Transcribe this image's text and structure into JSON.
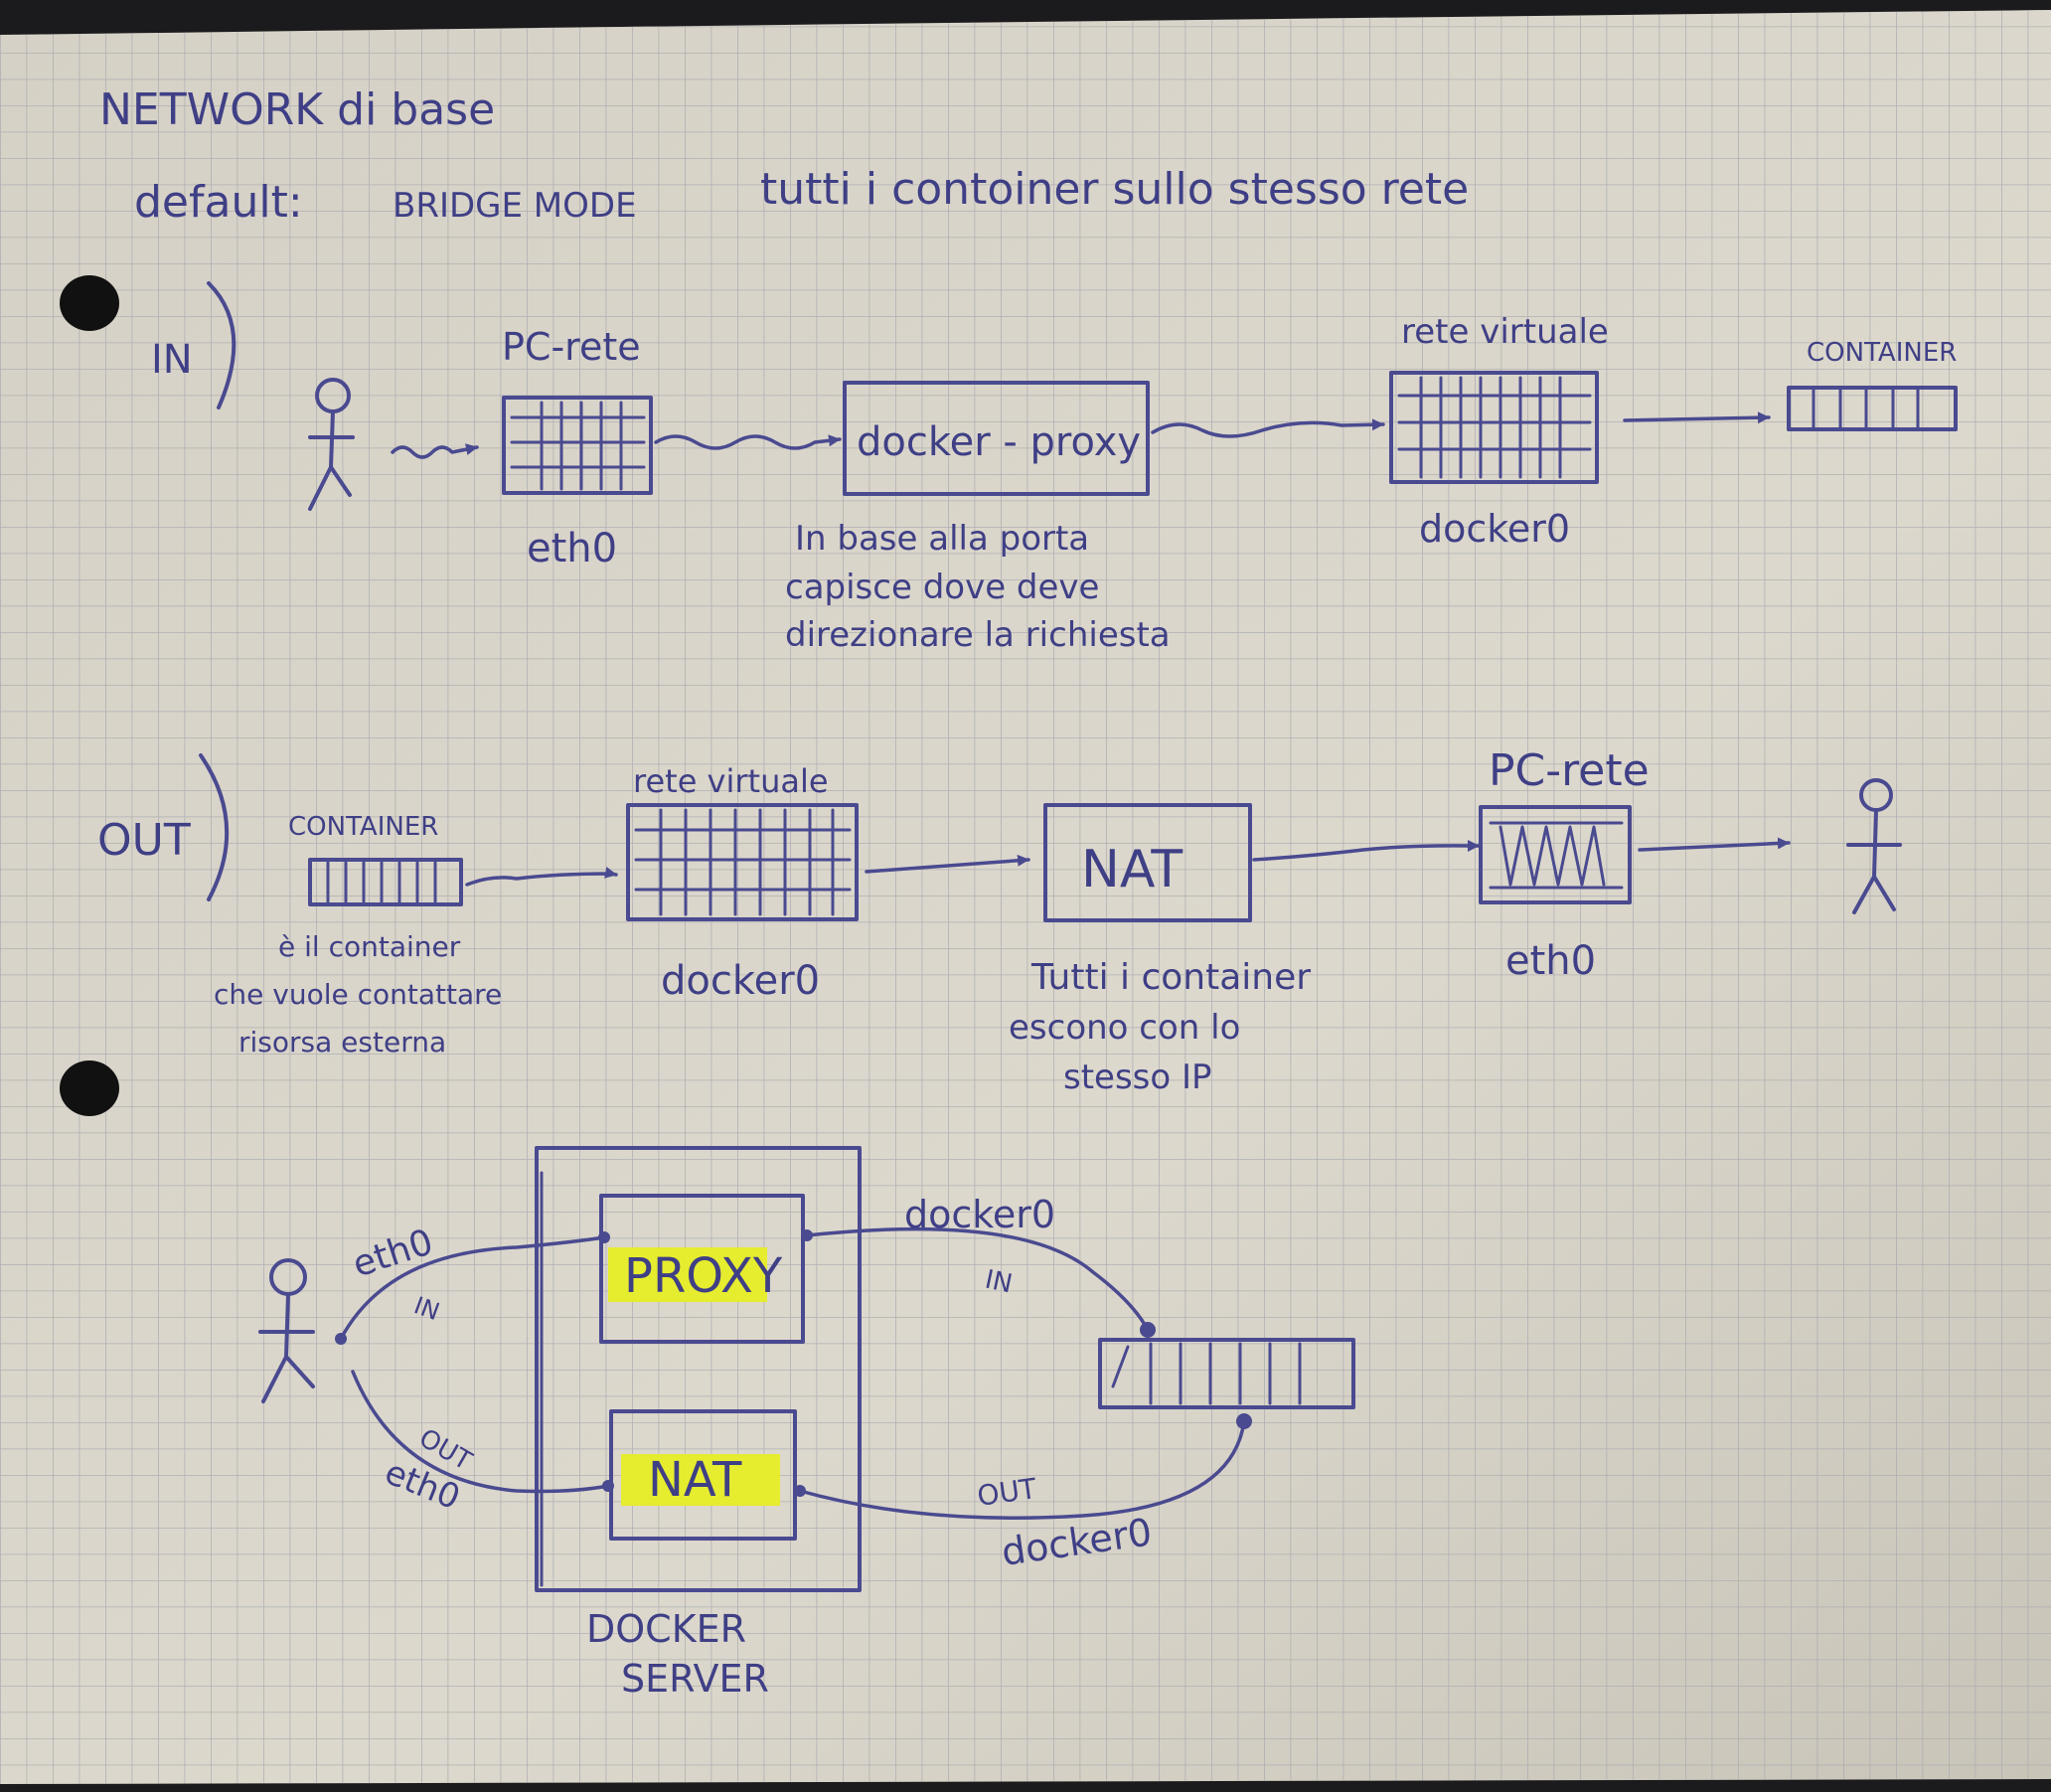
{
  "title": "NETWORK di base",
  "subtitle": {
    "prefix": "default:",
    "mode": "BRIDGE MODE",
    "note": "tutti i contoiner sullo stesso rete"
  },
  "in_section": {
    "label": "IN",
    "pc_rete_label": "PC-rete",
    "eth0_label": "eth0",
    "proxy_label": "docker - proxy",
    "proxy_note": [
      "In base alla porta",
      "capisce dove deve",
      "direzionare la richiesta"
    ],
    "rete_virtuale_label": "rete virtuale",
    "docker0_label": "docker0",
    "container_label": "CONTAINER"
  },
  "out_section": {
    "label": "OUT",
    "container_label": "CONTAINER",
    "container_note": [
      "è il container",
      "che vuole contattare",
      "risorsa esterna"
    ],
    "rete_virtuale_label": "rete virtuale",
    "docker0_label": "docker0",
    "nat_label": "NAT",
    "nat_note": [
      "Tutti i container",
      "escono con lo",
      "stesso IP"
    ],
    "pc_rete_label": "PC-rete",
    "eth0_label": "eth0"
  },
  "server_diagram": {
    "proxy_label": "PROXY",
    "nat_label": "NAT",
    "eth0_in_label": "eth0",
    "in_label": "IN",
    "out_label": "OUT",
    "eth0_out_label": "eth0",
    "docker0_in_label": "docker0",
    "in_right_label": "IN",
    "out_right_label": "OUT",
    "docker0_out_label": "docker0",
    "server_label": [
      "DOCKER",
      "SERVER"
    ],
    "highlight_color": "#e6ec2e"
  },
  "colors": {
    "paper": "#d9d4c9",
    "grid": "#a9aab0",
    "ink": "#4a4a90"
  }
}
